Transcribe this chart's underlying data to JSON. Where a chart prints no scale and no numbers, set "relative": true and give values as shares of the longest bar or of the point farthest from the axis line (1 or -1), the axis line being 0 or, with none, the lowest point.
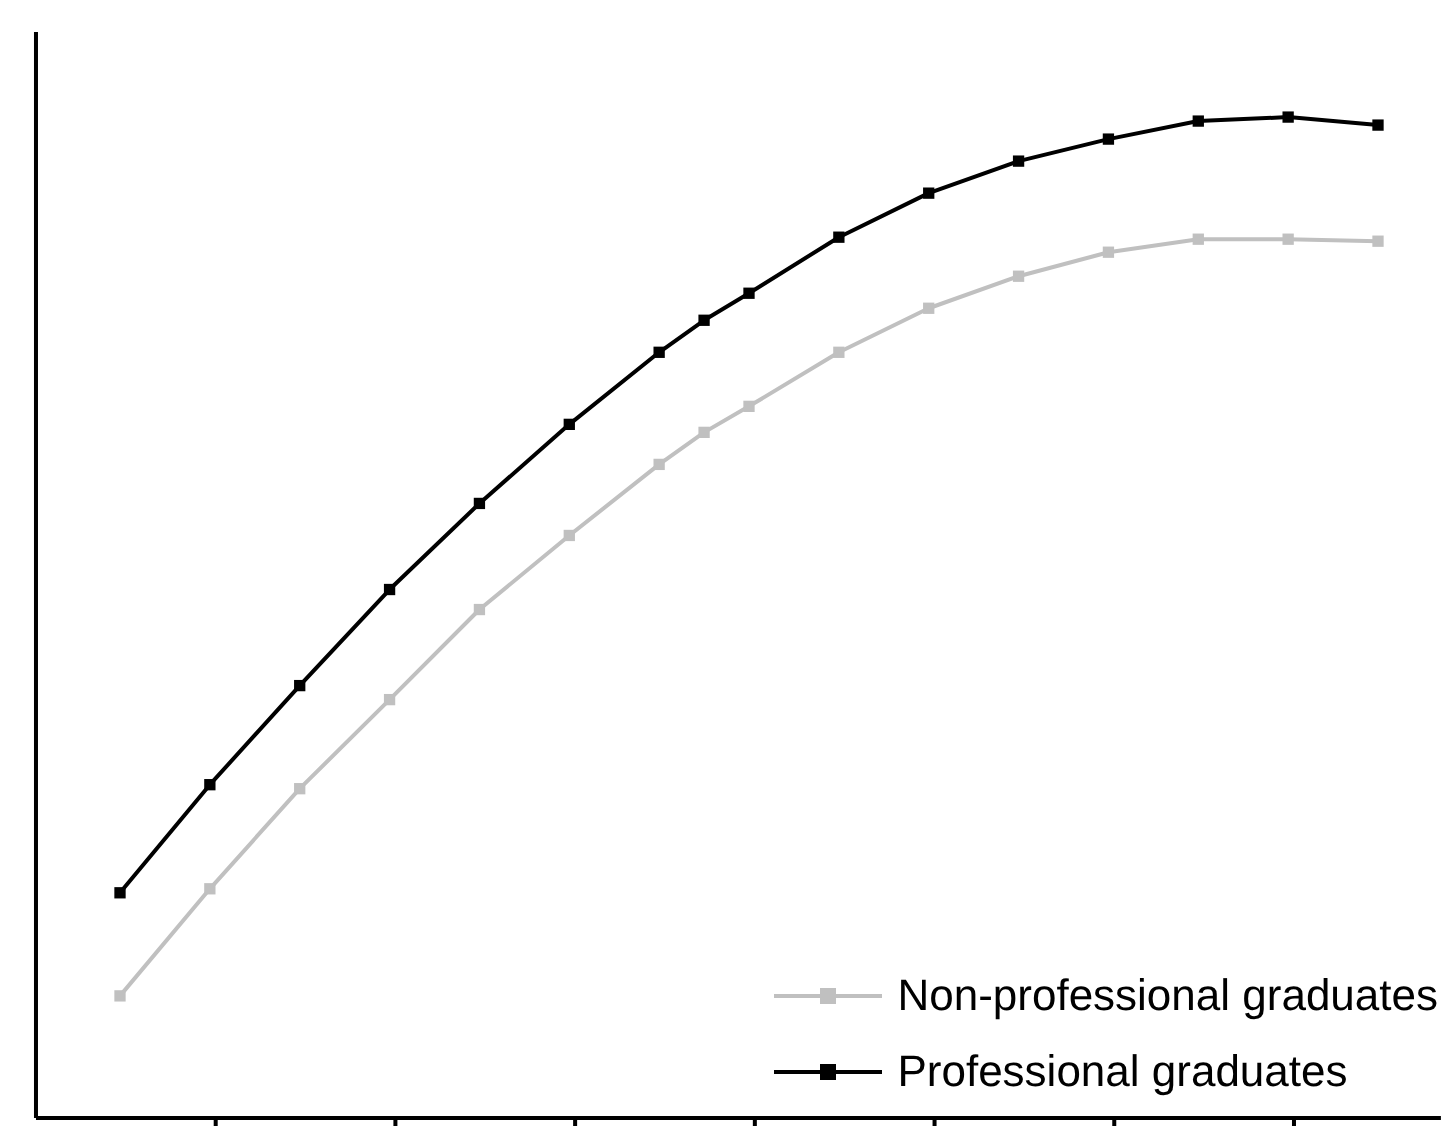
{
  "chart_data": {
    "type": "line",
    "relative": true,
    "categories": [
      null,
      null,
      null,
      null,
      null,
      null,
      null,
      null,
      null,
      null,
      null,
      null,
      null,
      null,
      null,
      null,
      null,
      null,
      null,
      null,
      null,
      null,
      null,
      null,
      null,
      null,
      null,
      null,
      null
    ],
    "marker": "square",
    "line_style": "solid",
    "legend": "bottom right",
    "series": [
      {
        "name": "Non-professional graduates",
        "color": "#c0c0c0",
        "values": [
          0.122,
          null,
          0.229,
          null,
          0.329,
          null,
          0.418,
          null,
          0.508,
          null,
          0.582,
          null,
          0.653,
          0.685,
          0.711,
          null,
          0.765,
          null,
          0.809,
          null,
          0.841,
          null,
          0.865,
          null,
          0.878,
          null,
          0.878,
          null,
          0.876
        ]
      },
      {
        "name": "Professional graduates",
        "color": "#000000",
        "values": [
          0.225,
          null,
          0.333,
          null,
          0.432,
          null,
          0.528,
          null,
          0.614,
          null,
          0.693,
          null,
          0.765,
          0.797,
          0.824,
          null,
          0.88,
          null,
          0.924,
          null,
          0.956,
          null,
          0.978,
          null,
          0.996,
          null,
          1,
          null,
          0.992
        ]
      }
    ]
  }
}
